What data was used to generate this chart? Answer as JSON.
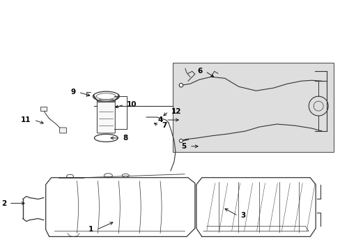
{
  "bg_color": "#ffffff",
  "line_color": "#333333",
  "label_color": "#000000",
  "inset_bg": "#e0e0e0",
  "figsize": [
    4.89,
    3.6
  ],
  "dpi": 100,
  "labels": {
    "1": [
      1.38,
      0.3,
      1.65,
      0.42
    ],
    "2": [
      0.12,
      0.68,
      0.38,
      0.68
    ],
    "3": [
      3.42,
      0.5,
      3.2,
      0.62
    ],
    "4": [
      2.38,
      1.88,
      2.6,
      1.88
    ],
    "5": [
      2.72,
      1.5,
      2.88,
      1.5
    ],
    "6": [
      2.95,
      2.58,
      3.1,
      2.48
    ],
    "7": [
      2.28,
      1.8,
      2.18,
      1.85
    ],
    "8": [
      1.72,
      1.62,
      1.55,
      1.62
    ],
    "9": [
      1.12,
      2.28,
      1.32,
      2.22
    ],
    "10": [
      1.78,
      2.1,
      1.62,
      2.05
    ],
    "11": [
      0.48,
      1.88,
      0.65,
      1.82
    ],
    "12": [
      2.42,
      2.0,
      2.32,
      1.92
    ]
  }
}
